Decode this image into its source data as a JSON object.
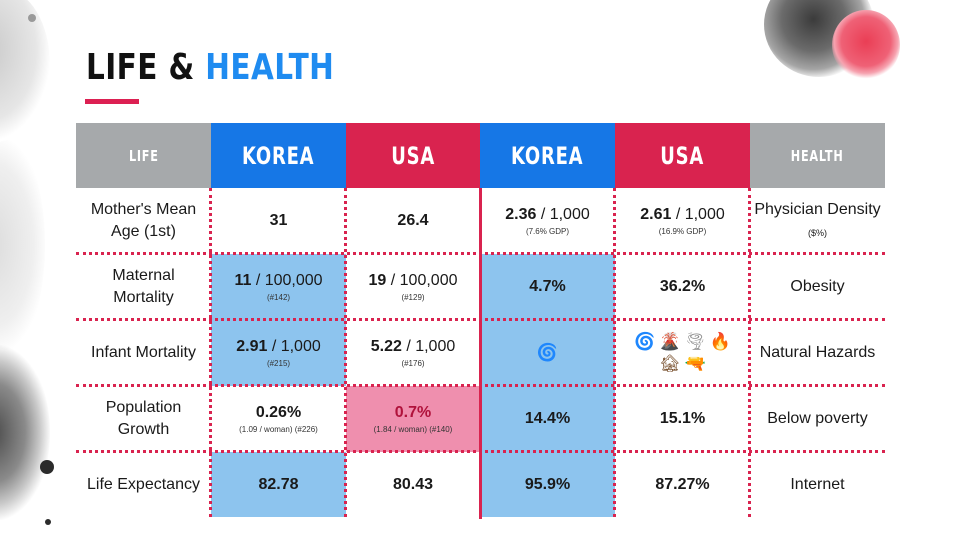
{
  "title": {
    "word1": "LIFE &",
    "word2": "HEALTH"
  },
  "colors": {
    "blue": "#1677e6",
    "red": "#d9234f",
    "gray": "#a6a9ab",
    "light_blue": "#8dc4ee",
    "pink": "#ef8fae",
    "title_blue": "#1f8bf0"
  },
  "headers": [
    "LIFE",
    "KOREA",
    "USA",
    "KOREA",
    "USA",
    "HEALTH"
  ],
  "rows": [
    {
      "life_label": "Mother's Mean Age (1st)",
      "korea_life": {
        "main": "31",
        "rest": "",
        "sub": ""
      },
      "usa_life": {
        "main": "26.4",
        "rest": "",
        "sub": ""
      },
      "korea_health": {
        "main": "2.36",
        "rest": " / 1,000",
        "sub": "(7.6% GDP)"
      },
      "usa_health": {
        "main": "2.61",
        "rest": " / 1,000",
        "sub": "(16.9% GDP)"
      },
      "health_label": "Physician Density",
      "health_label_small": "($%)"
    },
    {
      "life_label": "Maternal Mortality",
      "korea_life": {
        "main": "11",
        "rest": " / 100,000",
        "sub": "(#142)"
      },
      "usa_life": {
        "main": "19",
        "rest": " / 100,000",
        "sub": "(#129)"
      },
      "korea_health": {
        "main": "4.7%",
        "rest": "",
        "sub": ""
      },
      "usa_health": {
        "main": "36.2%",
        "rest": "",
        "sub": ""
      },
      "health_label": "Obesity",
      "health_label_small": ""
    },
    {
      "life_label": "Infant Mortality",
      "korea_life": {
        "main": "2.91",
        "rest": " / 1,000",
        "sub": "(#215)"
      },
      "usa_life": {
        "main": "5.22",
        "rest": " / 1,000",
        "sub": "(#176)"
      },
      "korea_health": {
        "icons": [
          "🌀"
        ]
      },
      "usa_health": {
        "icons": [
          "🌀",
          "🌋",
          "🌪",
          "🔥",
          "🏚",
          "🔫"
        ]
      },
      "health_label": "Natural Hazards",
      "health_label_small": ""
    },
    {
      "life_label": "Population Growth",
      "korea_life": {
        "main": "0.26%",
        "rest": "",
        "sub": "(1.09 / woman) (#226)"
      },
      "usa_life": {
        "main": "0.7%",
        "rest": "",
        "sub": "(1.84 / woman) (#140)"
      },
      "korea_health": {
        "main": "14.4%",
        "rest": "",
        "sub": ""
      },
      "usa_health": {
        "main": "15.1%",
        "rest": "",
        "sub": ""
      },
      "health_label": "Below poverty",
      "health_label_small": ""
    },
    {
      "life_label": "Life Expectancy",
      "korea_life": {
        "main": "82.78",
        "rest": "",
        "sub": ""
      },
      "usa_life": {
        "main": "80.43",
        "rest": "",
        "sub": ""
      },
      "korea_health": {
        "main": "95.9%",
        "rest": "",
        "sub": ""
      },
      "usa_health": {
        "main": "87.27%",
        "rest": "",
        "sub": ""
      },
      "health_label": "Internet",
      "health_label_small": ""
    }
  ]
}
